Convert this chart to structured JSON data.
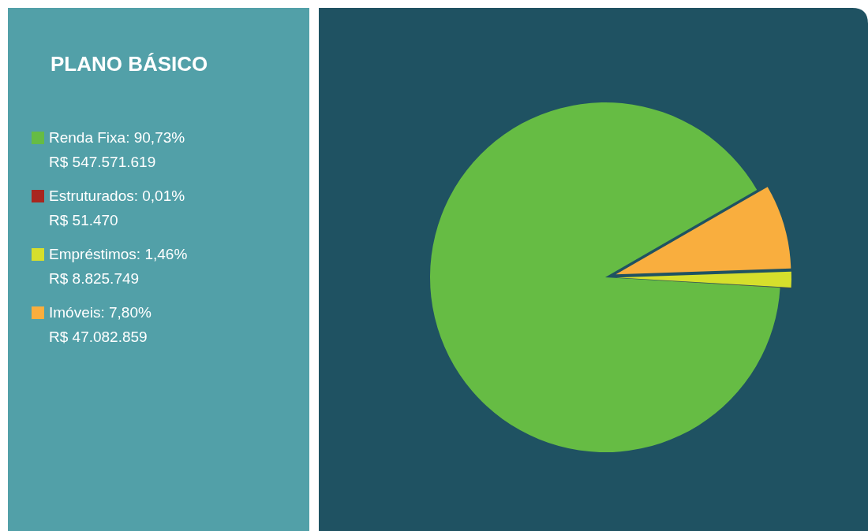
{
  "chart_data": {
    "type": "pie",
    "title": "PLANO BÁSICO",
    "categories": [
      "Renda Fixa: 90,73%",
      "Estruturados: 0,01%",
      "Empréstimos: 1,46%",
      "Imóveis: 7,80%"
    ],
    "values": [
      90.73,
      0.01,
      1.46,
      7.8
    ],
    "value_labels": [
      "R$ 547.571.619",
      "R$ 51.470",
      "R$ 8.825.749",
      "R$ 47.082.859"
    ],
    "colors": [
      "#66bc44",
      "#a8261f",
      "#d6df2c",
      "#f9ae3e"
    ],
    "legend": "left"
  }
}
